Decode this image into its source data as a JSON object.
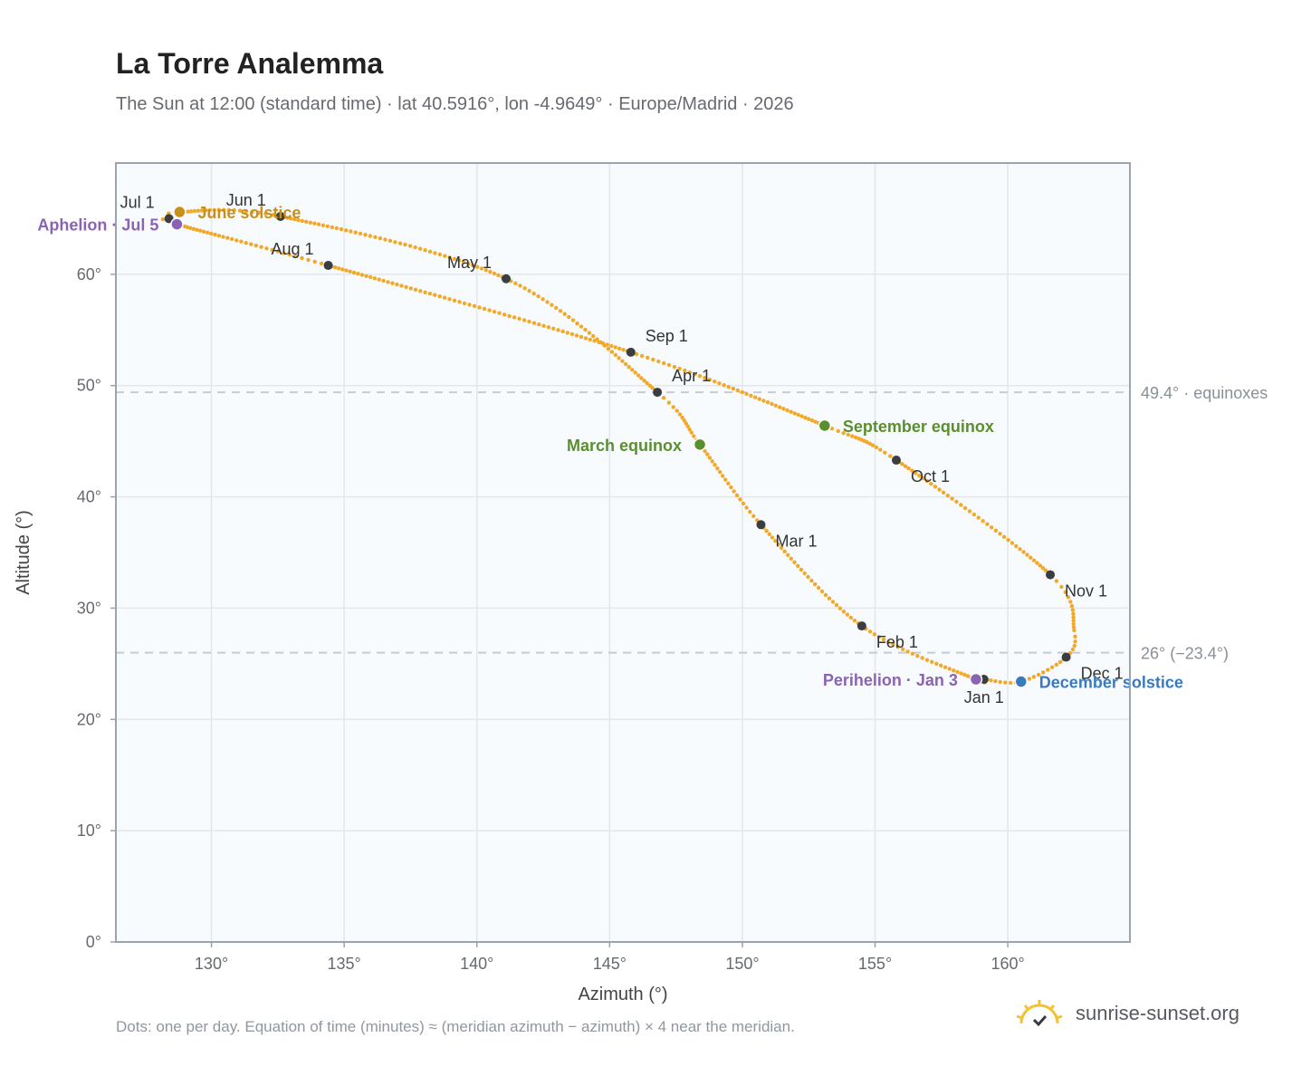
{
  "title": "La Torre Analemma",
  "subtitle": "The Sun at 12:00 (standard time) · lat 40.5916°, lon -4.9649° · Europe/Madrid · 2026",
  "footnote": "Dots: one per day. Equation of time (minutes) ≈ (meridian azimuth − azimuth) × 4 near the meridian.",
  "brand": {
    "name": "sunrise-sunset.org",
    "icon": "sun-logo-icon"
  },
  "colors": {
    "path": "#f2a829",
    "month_marker": "#3a3d42",
    "equinox": "#5a8f2e",
    "june_solstice": "#c8901a",
    "december_solstice": "#3a7bbf",
    "apsis": "#8a63b3",
    "reference_line": "#c5cbd3",
    "plot_bg": "#f8fbfd",
    "grid": "#e3e7ec",
    "frame": "#9aa3ae"
  },
  "chart_data": {
    "type": "scatter",
    "xlabel": "Azimuth (°)",
    "ylabel": "Altitude (°)",
    "xlim": [
      126.4,
      164.6
    ],
    "ylim": [
      0,
      70
    ],
    "xticks": [
      {
        "value": 130,
        "label": "130°"
      },
      {
        "value": 135,
        "label": "135°"
      },
      {
        "value": 140,
        "label": "140°"
      },
      {
        "value": 145,
        "label": "145°"
      },
      {
        "value": 150,
        "label": "150°"
      },
      {
        "value": 155,
        "label": "155°"
      },
      {
        "value": 160,
        "label": "160°"
      }
    ],
    "yticks": [
      {
        "value": 0,
        "label": "0°"
      },
      {
        "value": 10,
        "label": "10°"
      },
      {
        "value": 20,
        "label": "20°"
      },
      {
        "value": 30,
        "label": "30°"
      },
      {
        "value": 40,
        "label": "40°"
      },
      {
        "value": 50,
        "label": "50°"
      },
      {
        "value": 60,
        "label": "60°"
      }
    ],
    "grid": true,
    "path_key_points": [
      {
        "az": 160.5,
        "alt": 23.4
      },
      {
        "az": 159.1,
        "alt": 23.6
      },
      {
        "az": 158.8,
        "alt": 23.6
      },
      {
        "az": 154.5,
        "alt": 28.4
      },
      {
        "az": 150.7,
        "alt": 37.5
      },
      {
        "az": 148.4,
        "alt": 44.7
      },
      {
        "az": 146.8,
        "alt": 49.4
      },
      {
        "az": 141.1,
        "alt": 59.6
      },
      {
        "az": 132.6,
        "alt": 65.2
      },
      {
        "az": 128.8,
        "alt": 65.6
      },
      {
        "az": 128.4,
        "alt": 65.0
      },
      {
        "az": 128.7,
        "alt": 64.5
      },
      {
        "az": 134.4,
        "alt": 60.8
      },
      {
        "az": 145.8,
        "alt": 53.0
      },
      {
        "az": 153.1,
        "alt": 46.4
      },
      {
        "az": 155.8,
        "alt": 43.3
      },
      {
        "az": 161.6,
        "alt": 33.0
      },
      {
        "az": 162.5,
        "alt": 28.0
      },
      {
        "az": 162.2,
        "alt": 25.6
      },
      {
        "az": 160.5,
        "alt": 23.4
      }
    ],
    "month_markers": [
      {
        "label": "Jan 1",
        "az": 159.1,
        "alt": 23.6,
        "anchor": "below"
      },
      {
        "label": "Feb 1",
        "az": 154.5,
        "alt": 28.4,
        "anchor": "below-right"
      },
      {
        "label": "Mar 1",
        "az": 150.7,
        "alt": 37.5,
        "anchor": "below-right"
      },
      {
        "label": "Apr 1",
        "az": 146.8,
        "alt": 49.4,
        "anchor": "above-right"
      },
      {
        "label": "May 1",
        "az": 141.1,
        "alt": 59.6,
        "anchor": "above-left"
      },
      {
        "label": "Jun 1",
        "az": 132.6,
        "alt": 65.2,
        "anchor": "above-left"
      },
      {
        "label": "Jul 1",
        "az": 128.4,
        "alt": 65.0,
        "anchor": "above-left"
      },
      {
        "label": "Aug 1",
        "az": 134.4,
        "alt": 60.8,
        "anchor": "above-left"
      },
      {
        "label": "Sep 1",
        "az": 145.8,
        "alt": 53.0,
        "anchor": "above-right"
      },
      {
        "label": "Oct 1",
        "az": 155.8,
        "alt": 43.3,
        "anchor": "below-right"
      },
      {
        "label": "Nov 1",
        "az": 161.6,
        "alt": 33.0,
        "anchor": "below-right"
      },
      {
        "label": "Dec 1",
        "az": 162.2,
        "alt": 25.6,
        "anchor": "below-right"
      }
    ],
    "events": [
      {
        "label": "March equinox",
        "az": 148.4,
        "alt": 44.7,
        "color": "#5a8f2e",
        "anchor": "left"
      },
      {
        "label": "September equinox",
        "az": 153.1,
        "alt": 46.4,
        "color": "#5a8f2e",
        "anchor": "right"
      },
      {
        "label": "June solstice",
        "az": 128.8,
        "alt": 65.6,
        "color": "#c8901a",
        "anchor": "right"
      },
      {
        "label": "December solstice",
        "az": 160.5,
        "alt": 23.4,
        "color": "#3a7bbf",
        "anchor": "right"
      },
      {
        "label": "Aphelion · Jul 5",
        "az": 128.7,
        "alt": 64.5,
        "color": "#8a63b3",
        "anchor": "left"
      },
      {
        "label": "Perihelion · Jan 3",
        "az": 158.8,
        "alt": 23.6,
        "color": "#8a63b3",
        "anchor": "left"
      }
    ],
    "reference_lines": [
      {
        "alt": 49.4,
        "label": "49.4° · equinoxes"
      },
      {
        "alt": 26.0,
        "label": "26° (−23.4°)"
      }
    ]
  }
}
